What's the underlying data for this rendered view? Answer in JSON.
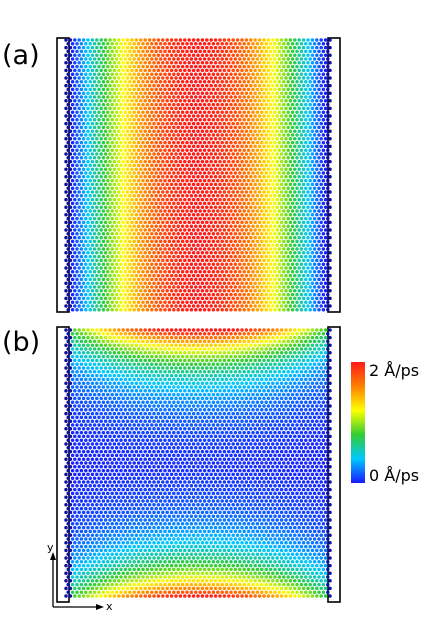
{
  "panels": [
    {
      "label": "(a)",
      "pattern": "center-x"
    },
    {
      "label": "(b)",
      "pattern": "ends-y"
    }
  ],
  "colorbar": {
    "max_label": "2 Å/ps",
    "min_label": "0 Å/ps",
    "colors": [
      "#1a1aff",
      "#00c8ff",
      "#33cc33",
      "#ffff00",
      "#ff8000",
      "#ff1a1a"
    ]
  },
  "axes": {
    "y_label": "y",
    "x_label": "x"
  }
}
